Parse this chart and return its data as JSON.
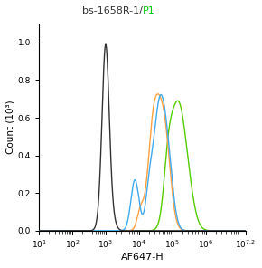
{
  "title_part1": "bs-1658R-1/",
  "title_part2": "P1",
  "title_color1": "#333333",
  "title_color2": "#00cc00",
  "xlabel": "AF647-H",
  "ylabel": "Count (10³)",
  "xlim_log": [
    1,
    7.2
  ],
  "ylim": [
    0,
    1.1
  ],
  "yticks": [
    0,
    0.2,
    0.4,
    0.6,
    0.8,
    1.0
  ],
  "black_color": "#333333",
  "orange_color": "#FFA040",
  "blue_color": "#40AAEE",
  "green_color": "#55CC00",
  "background_color": "#ffffff",
  "figsize": [
    2.9,
    2.96
  ],
  "dpi": 100
}
